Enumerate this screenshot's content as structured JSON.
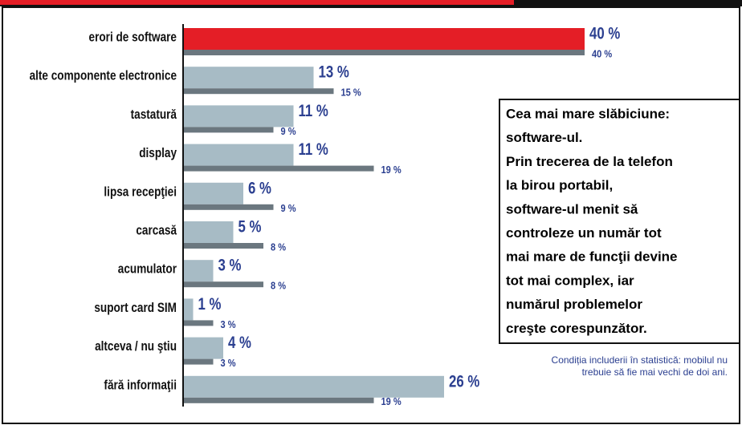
{
  "chart_data": {
    "type": "bar",
    "orientation": "horizontal",
    "categories": [
      "erori de software",
      "alte componente electronice",
      "tastatură",
      "display",
      "lipsa recepţiei",
      "carcasă",
      "acumulator",
      "suport card SIM",
      "altceva / nu ştiu",
      "fără informaţii"
    ],
    "series": [
      {
        "colors": [
          "#e41e26",
          "#a7bbc5",
          "#a7bbc5",
          "#a7bbc5",
          "#a7bbc5",
          "#a7bbc5",
          "#a7bbc5",
          "#a7bbc5",
          "#a7bbc5",
          "#a7bbc5"
        ],
        "values": [
          40,
          13,
          11,
          11,
          6,
          5,
          3,
          1,
          4,
          26
        ],
        "value_labels": [
          "40 %",
          "13 %",
          "11 %",
          "11 %",
          "6 %",
          "5 %",
          "3 %",
          "1 %",
          "4 %",
          "26 %"
        ]
      },
      {
        "color": "#6b777f",
        "values": [
          40,
          15,
          9,
          19,
          9,
          8,
          8,
          3,
          3,
          19
        ],
        "value_labels": [
          "40 %",
          "15 %",
          "9 %",
          "19 %",
          "9 %",
          "8 %",
          "8 %",
          "3 %",
          "3 %",
          "19 %"
        ]
      }
    ],
    "annotation": [
      "Cea mai mare slăbiciune:",
      "software-ul.",
      "Prin trecerea de la telefon",
      "la birou portabil,",
      "software-ul menit să",
      "controleze un număr tot",
      "mai mare de funcţii devine",
      "tot mai complex, iar",
      "numărul problemelor",
      "creşte corespunzător."
    ],
    "footnote": [
      "Condiția includerii în statistică: mobilul nu",
      "trebuie să fie mai vechi de doi ani."
    ]
  }
}
